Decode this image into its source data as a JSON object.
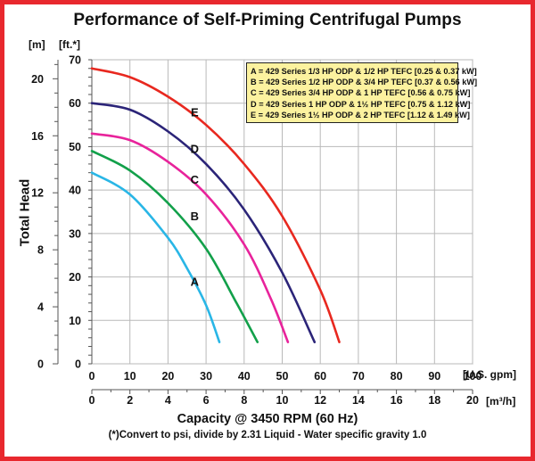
{
  "chart_data": {
    "type": "line",
    "title": "Performance of Self-Priming Centrifugal Pumps",
    "ylabel": "Total Head",
    "xlabel": "Capacity @ 3450 RPM (60 Hz)",
    "footnote": "(*)Convert to psi, divide by 2.31     Liquid - Water specific gravity 1.0",
    "y_unit_left": "[m]",
    "y_unit_right": "[ft.*]",
    "x_unit_top": "[U.S. gpm]",
    "x_unit_bottom": "[m³/h]",
    "x_gpm": {
      "ticks": [
        "0",
        "10",
        "20",
        "30",
        "40",
        "50",
        "60",
        "70",
        "80",
        "90",
        "100"
      ],
      "range": [
        0,
        100
      ]
    },
    "x_m3h": {
      "ticks": [
        "0",
        "2",
        "4",
        "6",
        "8",
        "10",
        "12",
        "14",
        "16",
        "18",
        "20"
      ],
      "range": [
        0,
        20
      ]
    },
    "y_ft": {
      "ticks": [
        "0",
        "10",
        "20",
        "30",
        "40",
        "50",
        "60",
        "70"
      ],
      "range": [
        0,
        70
      ]
    },
    "y_m": {
      "ticks": [
        "0",
        "4",
        "8",
        "12",
        "16",
        "20"
      ],
      "range": [
        0,
        21.34
      ]
    },
    "grid": true,
    "legend": {
      "position": "top-right",
      "entries": [
        "A = 429 Series 1/3 HP ODP & 1/2 HP TEFC [0.25 & 0.37 kW]",
        "B = 429 Series 1/2 HP ODP & 3/4 HP TEFC [0.37 & 0.56 kW]",
        "C = 429 Series 3/4 HP ODP & 1 HP TEFC [0.56 & 0.75 kW]",
        "D = 429 Series 1 HP ODP & 1½ HP TEFC [0.75 & 1.12 kW]",
        "E = 429 Series 1½ HP ODP & 2 HP TEFC [1.12 & 1.49 kW]"
      ]
    },
    "series": [
      {
        "name": "A",
        "color": "#29b6e6",
        "x": [
          0,
          10,
          20,
          25,
          30,
          33.5
        ],
        "y": [
          44,
          39,
          29,
          22,
          13.5,
          5
        ]
      },
      {
        "name": "B",
        "color": "#12a04a",
        "x": [
          0,
          10,
          20,
          30,
          38,
          43.5
        ],
        "y": [
          49,
          44.5,
          37,
          26.5,
          14,
          5
        ]
      },
      {
        "name": "C",
        "color": "#e8239b",
        "x": [
          0,
          10,
          20,
          30,
          40,
          47,
          51.5
        ],
        "y": [
          53,
          51.5,
          46.5,
          39,
          27.5,
          15,
          5
        ]
      },
      {
        "name": "D",
        "color": "#2b2478",
        "x": [
          0,
          10,
          20,
          30,
          40,
          50,
          58.5
        ],
        "y": [
          60,
          58.5,
          53.5,
          46,
          35.5,
          21,
          5
        ]
      },
      {
        "name": "E",
        "color": "#e8281f",
        "x": [
          0,
          10,
          20,
          30,
          40,
          50,
          60,
          65
        ],
        "y": [
          68,
          66,
          61.5,
          55,
          46,
          34,
          17,
          5
        ]
      }
    ],
    "series_labels": [
      {
        "name": "A",
        "x": 27,
        "y": 18
      },
      {
        "name": "B",
        "x": 27,
        "y": 33
      },
      {
        "name": "C",
        "x": 27,
        "y": 41.5
      },
      {
        "name": "D",
        "x": 27,
        "y": 48.5
      },
      {
        "name": "E",
        "x": 27,
        "y": 57
      }
    ]
  }
}
